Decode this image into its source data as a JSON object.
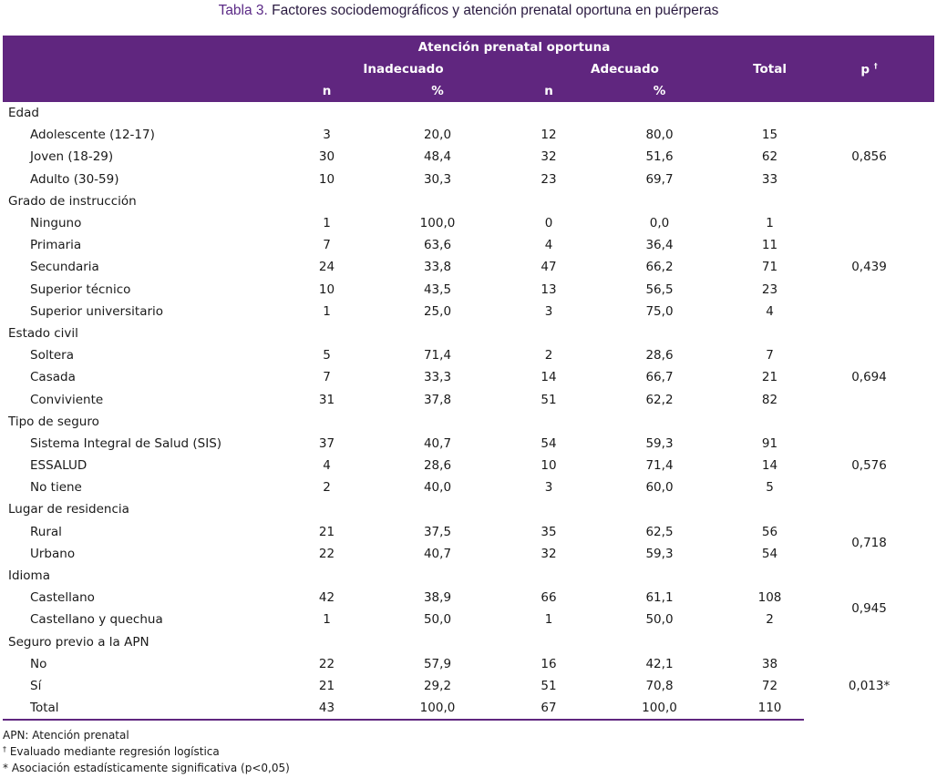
{
  "caption": {
    "label": "Tabla 3.",
    "text": " Factores sociodemográficos y atención prenatal oportuna en puérperas"
  },
  "header": {
    "group": "Atención prenatal oportuna",
    "inadecuado": "Inadecuado",
    "adecuado": "Adecuado",
    "total": "Total",
    "p": "p",
    "p_mark": "†",
    "n1": "n",
    "pct1": "%",
    "n2": "n",
    "pct2": "%"
  },
  "rows": [
    {
      "type": "group",
      "label": "Edad"
    },
    {
      "type": "sub",
      "label": "Adolescente (12-17)",
      "n1": "3",
      "pct1": "20,0",
      "n2": "12",
      "pct2": "80,0",
      "total": "15"
    },
    {
      "type": "sub",
      "label": "Joven  (18-29)",
      "n1": "30",
      "pct1": "48,4",
      "n2": "32",
      "pct2": "51,6",
      "total": "62"
    },
    {
      "type": "sub",
      "label": "Adulto (30-59)",
      "n1": "10",
      "pct1": "30,3",
      "n2": "23",
      "pct2": "69,7",
      "total": "33"
    },
    {
      "type": "group",
      "label": "Grado de instrucción"
    },
    {
      "type": "sub",
      "label": "Ninguno",
      "n1": "1",
      "pct1": "100,0",
      "n2": "0",
      "pct2": "0,0",
      "total": "1"
    },
    {
      "type": "sub",
      "label": "Primaria",
      "n1": "7",
      "pct1": "63,6",
      "n2": "4",
      "pct2": "36,4",
      "total": "11"
    },
    {
      "type": "sub",
      "label": "Secundaria",
      "n1": "24",
      "pct1": "33,8",
      "n2": "47",
      "pct2": "66,2",
      "total": "71"
    },
    {
      "type": "sub",
      "label": "Superior técnico",
      "n1": "10",
      "pct1": "43,5",
      "n2": "13",
      "pct2": "56,5",
      "total": "23"
    },
    {
      "type": "sub",
      "label": "Superior universitario",
      "n1": "1",
      "pct1": "25,0",
      "n2": "3",
      "pct2": "75,0",
      "total": "4"
    },
    {
      "type": "group",
      "label": "Estado civil"
    },
    {
      "type": "sub",
      "label": "Soltera",
      "n1": "5",
      "pct1": "71,4",
      "n2": "2",
      "pct2": "28,6",
      "total": "7"
    },
    {
      "type": "sub",
      "label": "Casada",
      "n1": "7",
      "pct1": "33,3",
      "n2": "14",
      "pct2": "66,7",
      "total": "21"
    },
    {
      "type": "sub",
      "label": "Conviviente",
      "n1": "31",
      "pct1": "37,8",
      "n2": "51",
      "pct2": "62,2",
      "total": "82"
    },
    {
      "type": "group",
      "label": "Tipo de seguro"
    },
    {
      "type": "sub",
      "label": "Sistema Integral de Salud (SIS)",
      "n1": "37",
      "pct1": "40,7",
      "n2": "54",
      "pct2": "59,3",
      "total": "91"
    },
    {
      "type": "sub",
      "label": "ESSALUD",
      "n1": "4",
      "pct1": "28,6",
      "n2": "10",
      "pct2": "71,4",
      "total": "14"
    },
    {
      "type": "sub",
      "label": "No tiene",
      "n1": "2",
      "pct1": "40,0",
      "n2": "3",
      "pct2": "60,0",
      "total": "5"
    },
    {
      "type": "group",
      "label": "Lugar de residencia"
    },
    {
      "type": "sub",
      "label": "Rural",
      "n1": "21",
      "pct1": "37,5",
      "n2": "35",
      "pct2": "62,5",
      "total": "56"
    },
    {
      "type": "sub",
      "label": "Urbano",
      "n1": "22",
      "pct1": "40,7",
      "n2": "32",
      "pct2": "59,3",
      "total": "54"
    },
    {
      "type": "group",
      "label": "Idioma"
    },
    {
      "type": "sub",
      "label": "Castellano",
      "n1": "42",
      "pct1": "38,9",
      "n2": "66",
      "pct2": "61,1",
      "total": "108"
    },
    {
      "type": "sub",
      "label": "Castellano y quechua",
      "n1": "1",
      "pct1": "50,0",
      "n2": "1",
      "pct2": "50,0",
      "total": "2"
    },
    {
      "type": "group",
      "label": "Seguro previo a la APN"
    },
    {
      "type": "sub",
      "label": "No",
      "n1": "22",
      "pct1": "57,9",
      "n2": "16",
      "pct2": "42,1",
      "total": "38"
    },
    {
      "type": "sub",
      "label": "Sí",
      "n1": "21",
      "pct1": "29,2",
      "n2": "51",
      "pct2": "70,8",
      "total": "72"
    },
    {
      "type": "sub",
      "label": "Total",
      "n1": "43",
      "pct1": "100,0",
      "n2": "67",
      "pct2": "100,0",
      "total": "110"
    }
  ],
  "pvalues": [
    {
      "first": 1,
      "span": 3,
      "value": "0,856"
    },
    {
      "first": 5,
      "span": 5,
      "value": "0,439"
    },
    {
      "first": 11,
      "span": 3,
      "value": "0,694"
    },
    {
      "first": 15,
      "span": 3,
      "value": "0,576"
    },
    {
      "first": 19,
      "span": 2,
      "value": "0,718"
    },
    {
      "first": 22,
      "span": 2,
      "value": "0,945"
    },
    {
      "first": 25,
      "span": 3,
      "value": "0,013*"
    }
  ],
  "footnotes": {
    "apn": "APN: Atención prenatal",
    "dagger_mark": "†",
    "dagger": " Evaluado mediante regresión logística",
    "asterisk": "* Asociación estadísticamente significativa (p<0,05)"
  },
  "colors": {
    "header_bg": "#60267f",
    "caption_label": "#5b2a86"
  }
}
